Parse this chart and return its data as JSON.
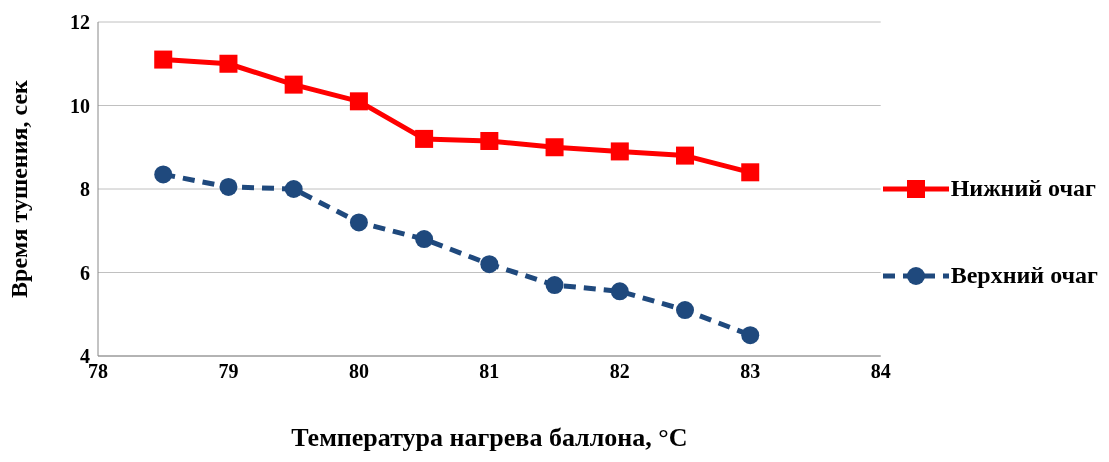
{
  "chart_data": {
    "type": "line",
    "xlabel": "Температура нагрева баллона, °C",
    "ylabel": "Время тушения, сек",
    "x": [
      78.5,
      79,
      79.5,
      80,
      80.5,
      81,
      81.5,
      82,
      82.5,
      83
    ],
    "series": [
      {
        "name": "Нижний очаг",
        "color": "#ff0000",
        "marker": "square",
        "line_style": "solid",
        "values": [
          11.1,
          11.0,
          10.5,
          10.1,
          9.2,
          9.15,
          9.0,
          8.9,
          8.8,
          8.4
        ]
      },
      {
        "name": "Верхний очаг",
        "color": "#1f497d",
        "marker": "circle",
        "line_style": "dashed",
        "values": [
          8.35,
          8.05,
          8.0,
          7.2,
          6.8,
          6.2,
          5.7,
          5.55,
          5.1,
          4.5
        ]
      }
    ],
    "xlim": [
      78,
      84
    ],
    "xticks": [
      78,
      79,
      80,
      81,
      82,
      83,
      84
    ],
    "ylim": [
      4,
      12
    ],
    "yticks": [
      4,
      6,
      8,
      10,
      12
    ],
    "grid": "y",
    "legend": "right"
  }
}
